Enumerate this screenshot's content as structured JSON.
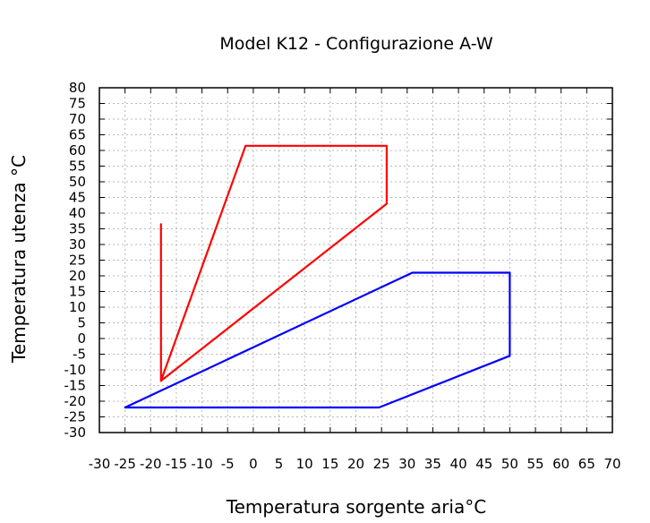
{
  "chart_data": {
    "type": "line",
    "title": "Model K12 - Configurazione A-W",
    "xlabel": "Temperatura sorgente aria°C",
    "ylabel": "Temperatura utenza °C",
    "xlim": [
      -30,
      70
    ],
    "ylim": [
      -30,
      80
    ],
    "x_ticks": [
      -30,
      -25,
      -20,
      -15,
      -10,
      -5,
      0,
      5,
      10,
      15,
      20,
      25,
      30,
      35,
      40,
      45,
      50,
      55,
      60,
      65,
      70
    ],
    "y_ticks": [
      -30,
      -25,
      -20,
      -15,
      -10,
      -5,
      0,
      5,
      10,
      15,
      20,
      25,
      30,
      35,
      40,
      45,
      50,
      55,
      60,
      65,
      70,
      75,
      80
    ],
    "x_tick_labels": [
      "-30",
      "-25",
      "-20",
      "-15",
      "-10",
      "-5",
      "0",
      "5",
      "10",
      "15",
      "20",
      "25",
      "30",
      "35",
      "40",
      "45",
      "50",
      "55",
      "60",
      "65",
      "70"
    ],
    "y_tick_labels": [
      "-30",
      "-25",
      "-20",
      "-15",
      "-10",
      "-5",
      "0",
      "5",
      "10",
      "15",
      "20",
      "25",
      "30",
      "35",
      "40",
      "45",
      "50",
      "55",
      "60",
      "65",
      "70",
      "75",
      "80"
    ],
    "grid": true,
    "series": [
      {
        "color": "#ff0000",
        "x": [
          -18,
          -1.5,
          26,
          26,
          -18,
          -18
        ],
        "y": [
          -13.5,
          61.5,
          61.5,
          43,
          -13.5,
          36.5
        ],
        "closed": true
      },
      {
        "color": "#0000ff",
        "x": [
          -25,
          31,
          50,
          50,
          24.5,
          -25
        ],
        "y": [
          -22,
          21,
          21,
          -5.5,
          -22,
          -22
        ],
        "closed": true
      }
    ]
  }
}
